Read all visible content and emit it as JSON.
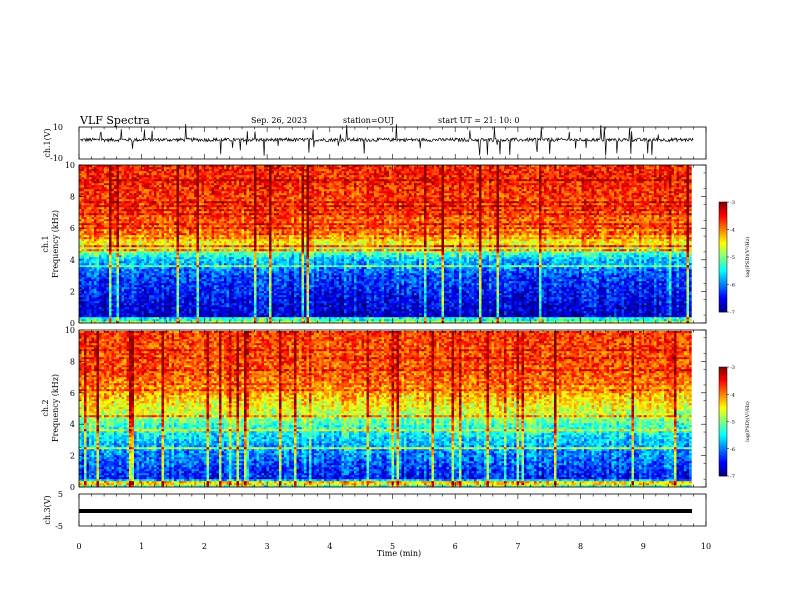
{
  "header": {
    "title": "VLF Spectra",
    "date": "Sep. 26, 2023",
    "station": "station=OUJ",
    "start": "start  UT  =   21: 10: 0"
  },
  "chart_data": [
    {
      "type": "line",
      "ylabel": "ch.1(V)",
      "ylim": [
        -10,
        10
      ],
      "y_ticks": [
        "10",
        "-10"
      ],
      "xlim": [
        0,
        10
      ],
      "note": "waveform ~ +2 V baseline with spikes"
    },
    {
      "type": "heatmap",
      "ylabel_line1": "ch.1",
      "ylabel_line2": "Frequency  (kHz)",
      "ylim": [
        0,
        10
      ],
      "y_ticks": [
        "0",
        "2",
        "4",
        "6",
        "8",
        "10"
      ],
      "xlim": [
        0,
        9.8
      ],
      "colorbar_label": "log(PSD)(V²/Hz)",
      "colorbar_range": [
        -7,
        -3
      ],
      "colorbar_ticks": [
        "-3",
        "-4",
        "-5",
        "-6",
        "-7"
      ],
      "noise_floor_profile": [
        -6.8,
        -6.6,
        -6.4,
        -6.2,
        -5.7,
        -4.5,
        -3.9,
        -3.8,
        -3.7,
        -3.6,
        -3.6
      ]
    },
    {
      "type": "heatmap",
      "ylabel_line1": "ch.2",
      "ylabel_line2": "Frequency  (kHz)",
      "ylim": [
        0,
        10
      ],
      "y_ticks": [
        "0",
        "2",
        "4",
        "6",
        "8",
        "10"
      ],
      "xlim": [
        0,
        9.8
      ],
      "colorbar_label": "log(PSD)(V²/Hz)",
      "colorbar_range": [
        -7,
        -3
      ],
      "colorbar_ticks": [
        "-3",
        "-4",
        "-5",
        "-6",
        "-7"
      ],
      "noise_floor_profile": [
        -6.6,
        -6.3,
        -6.0,
        -5.7,
        -5.2,
        -4.6,
        -4.2,
        -3.9,
        -3.8,
        -3.8,
        -3.7
      ]
    },
    {
      "type": "line",
      "ylabel": "ch.3(V)",
      "ylim": [
        -5,
        5
      ],
      "y_ticks": [
        "5",
        "-5"
      ],
      "xlim": [
        0,
        10
      ],
      "xlabel": "Time  (min)",
      "x_ticks": [
        "0",
        "1",
        "2",
        "3",
        "4",
        "5",
        "6",
        "7",
        "8",
        "9",
        "10"
      ],
      "constant_value": 0
    }
  ]
}
